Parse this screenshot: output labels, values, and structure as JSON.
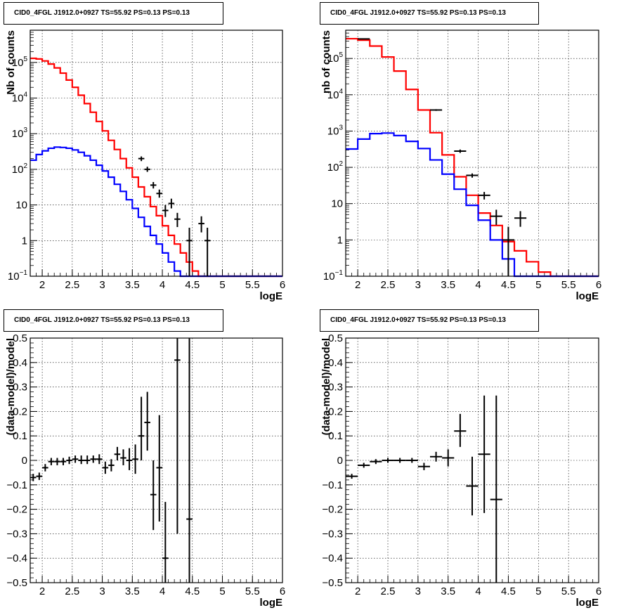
{
  "panels": [
    {
      "title": "CID0_4FGL J1912.0+0927 TS=55.92 PS=0.13 PS=0.13"
    },
    {
      "title": "CID0_4FGL J1912.0+0927 TS=55.92 PS=0.13 PS=0.13"
    },
    {
      "title": "CID0_4FGL J1912.0+0927 TS=55.92 PS=0.13 PS=0.13"
    },
    {
      "title": "CID0_4FGL J1912.0+0927 TS=55.92 PS=0.13 PS=0.13"
    }
  ],
  "chart_data": [
    {
      "type": "line",
      "title": "CID0_4FGL J1912.0+0927 TS=55.92 PS=0.13 PS=0.13",
      "xlabel": "logE",
      "ylabel": "Nb of counts",
      "xlim": [
        1.8,
        6.0
      ],
      "ylim": [
        0.1,
        800000
      ],
      "ylog": true,
      "grid": true,
      "xticks": [
        "2",
        "2.5",
        "3",
        "3.5",
        "4",
        "4.5",
        "5",
        "5.5",
        "6"
      ],
      "yticks": [
        {
          "v": 0.1,
          "label": "10^-1"
        },
        {
          "v": 1,
          "label": "1"
        },
        {
          "v": 10,
          "label": "10"
        },
        {
          "v": 100,
          "label": "10^2"
        },
        {
          "v": 1000,
          "label": "10^3"
        },
        {
          "v": 10000,
          "label": "10^4"
        },
        {
          "v": 100000,
          "label": "10^5"
        }
      ],
      "bin_edges": [
        1.8,
        1.9,
        2.0,
        2.1,
        2.2,
        2.3,
        2.4,
        2.5,
        2.6,
        2.7,
        2.8,
        2.9,
        3.0,
        3.1,
        3.2,
        3.3,
        3.4,
        3.5,
        3.6,
        3.7,
        3.8,
        3.9,
        4.0,
        4.1,
        4.2,
        4.3,
        4.4,
        4.5,
        4.6,
        4.7,
        4.8,
        4.9,
        5.0,
        5.1,
        5.2,
        5.3,
        5.4,
        5.5,
        5.6,
        5.7,
        5.8,
        5.9,
        6.0
      ],
      "series": [
        {
          "color": "#ff0000",
          "values": [
            130000,
            125000,
            110000,
            90000,
            70000,
            50000,
            32000,
            20000,
            12000,
            7000,
            4000,
            2200,
            1200,
            650,
            360,
            200,
            110,
            60,
            32,
            17,
            9,
            5,
            2.6,
            1.4,
            0.8,
            0.45,
            0.25,
            0.14,
            0.1,
            0.1,
            0.1,
            0.1,
            0.1,
            0.1,
            0.1,
            0.1,
            0.1,
            0.1,
            0.1,
            0.1,
            0.1,
            0.1
          ]
        },
        {
          "color": "#0000ff",
          "values": [
            180,
            260,
            330,
            390,
            420,
            410,
            390,
            350,
            300,
            240,
            180,
            130,
            90,
            60,
            38,
            24,
            14,
            8,
            4.5,
            2.5,
            1.4,
            0.8,
            0.45,
            0.25,
            0.14,
            0.1,
            0.1,
            0.1,
            0.1,
            0.1,
            0.1,
            0.1,
            0.1,
            0.1,
            0.1,
            0.1,
            0.1,
            0.1,
            0.1,
            0.1,
            0.1,
            0.1
          ]
        }
      ],
      "points": [
        {
          "x": 3.65,
          "y": 200,
          "xerr": 0.05,
          "ylo": 170,
          "yhi": 230
        },
        {
          "x": 3.75,
          "y": 100,
          "xerr": 0.05,
          "ylo": 85,
          "yhi": 118
        },
        {
          "x": 3.85,
          "y": 36,
          "xerr": 0.05,
          "ylo": 29,
          "yhi": 44
        },
        {
          "x": 3.95,
          "y": 21,
          "xerr": 0.05,
          "ylo": 16,
          "yhi": 27
        },
        {
          "x": 4.05,
          "y": 7,
          "xerr": 0.05,
          "ylo": 4.6,
          "yhi": 10
        },
        {
          "x": 4.15,
          "y": 11,
          "xerr": 0.05,
          "ylo": 8,
          "yhi": 15
        },
        {
          "x": 4.25,
          "y": 4,
          "xerr": 0.05,
          "ylo": 2.4,
          "yhi": 6
        },
        {
          "x": 4.45,
          "y": 1,
          "xerr": 0.05,
          "ylo": 0.1,
          "yhi": 2.3
        },
        {
          "x": 4.65,
          "y": 3,
          "xerr": 0.05,
          "ylo": 1.7,
          "yhi": 4.8
        },
        {
          "x": 4.75,
          "y": 1,
          "xerr": 0.05,
          "ylo": 0.1,
          "yhi": 2.3
        }
      ]
    },
    {
      "type": "line",
      "title": "CID0_4FGL J1912.0+0927 TS=55.92 PS=0.13 PS=0.13",
      "xlabel": "logE",
      "ylabel": "nb of counts",
      "xlim": [
        1.8,
        6.0
      ],
      "ylim": [
        0.1,
        600000
      ],
      "ylog": true,
      "grid": true,
      "xticks": [
        "2",
        "2.5",
        "3",
        "3.5",
        "4",
        "4.5",
        "5",
        "5.5",
        "6"
      ],
      "yticks": [
        {
          "v": 0.1,
          "label": "10^-1"
        },
        {
          "v": 1,
          "label": "1"
        },
        {
          "v": 10,
          "label": "10"
        },
        {
          "v": 100,
          "label": "10^2"
        },
        {
          "v": 1000,
          "label": "10^3"
        },
        {
          "v": 10000,
          "label": "10^4"
        },
        {
          "v": 100000,
          "label": "10^5"
        }
      ],
      "bin_edges": [
        1.8,
        2.0,
        2.2,
        2.4,
        2.6,
        2.8,
        3.0,
        3.2,
        3.4,
        3.6,
        3.8,
        4.0,
        4.2,
        4.4,
        4.6,
        4.8,
        5.0,
        5.2,
        5.4,
        5.6,
        5.8,
        6.0
      ],
      "series": [
        {
          "color": "#ff0000",
          "values": [
            350000,
            320000,
            220000,
            110000,
            45000,
            14000,
            3800,
            900,
            220,
            55,
            17,
            5.5,
            2.5,
            0.9,
            0.5,
            0.25,
            0.13,
            0.1,
            0.1,
            0.1,
            0.1
          ]
        },
        {
          "color": "#0000ff",
          "values": [
            320,
            600,
            850,
            880,
            750,
            520,
            330,
            160,
            65,
            25,
            9,
            3.5,
            1.0,
            0.3,
            0.1,
            0.1,
            0.1,
            0.1,
            0.1,
            0.1,
            0.1
          ]
        }
      ],
      "points": [
        {
          "x": 2.1,
          "y": 345000,
          "xerr": 0.1,
          "ylo": 340000,
          "yhi": 350000
        },
        {
          "x": 3.3,
          "y": 3800,
          "xerr": 0.1,
          "ylo": 3600,
          "yhi": 4000
        },
        {
          "x": 3.7,
          "y": 280,
          "xerr": 0.1,
          "ylo": 250,
          "yhi": 310
        },
        {
          "x": 3.9,
          "y": 60,
          "xerr": 0.1,
          "ylo": 52,
          "yhi": 68
        },
        {
          "x": 4.1,
          "y": 17,
          "xerr": 0.1,
          "ylo": 13,
          "yhi": 21
        },
        {
          "x": 4.3,
          "y": 4.5,
          "xerr": 0.1,
          "ylo": 2.6,
          "yhi": 6.8
        },
        {
          "x": 4.5,
          "y": 1,
          "xerr": 0.1,
          "ylo": 0.1,
          "yhi": 2.3
        },
        {
          "x": 4.7,
          "y": 4,
          "xerr": 0.1,
          "ylo": 2.3,
          "yhi": 6.2
        }
      ]
    },
    {
      "type": "scatter",
      "title": "CID0_4FGL J1912.0+0927 TS=55.92 PS=0.13 PS=0.13",
      "xlabel": "logE",
      "ylabel": "(data-model)/model",
      "xlim": [
        1.8,
        6.0
      ],
      "ylim": [
        -0.5,
        0.5
      ],
      "ylog": false,
      "grid": true,
      "xticks": [
        "2",
        "2.5",
        "3",
        "3.5",
        "4",
        "4.5",
        "5",
        "5.5",
        "6"
      ],
      "yticks": [
        {
          "v": -0.5,
          "label": "−0.5"
        },
        {
          "v": -0.4,
          "label": "−0.4"
        },
        {
          "v": -0.3,
          "label": "−0.3"
        },
        {
          "v": -0.2,
          "label": "−0.2"
        },
        {
          "v": -0.1,
          "label": "−0.1"
        },
        {
          "v": 0,
          "label": "0"
        },
        {
          "v": 0.1,
          "label": "0.1"
        },
        {
          "v": 0.2,
          "label": "0.2"
        },
        {
          "v": 0.3,
          "label": "0.3"
        },
        {
          "v": 0.4,
          "label": "0.4"
        },
        {
          "v": 0.5,
          "label": "0.5"
        }
      ],
      "points": [
        {
          "x": 1.85,
          "y": -0.07,
          "xerr": 0.05,
          "ylo": -0.085,
          "yhi": -0.055
        },
        {
          "x": 1.95,
          "y": -0.065,
          "xerr": 0.05,
          "ylo": -0.08,
          "yhi": -0.05
        },
        {
          "x": 2.05,
          "y": -0.03,
          "xerr": 0.05,
          "ylo": -0.045,
          "yhi": -0.015
        },
        {
          "x": 2.15,
          "y": -0.005,
          "xerr": 0.05,
          "ylo": -0.02,
          "yhi": 0.01
        },
        {
          "x": 2.25,
          "y": -0.005,
          "xerr": 0.05,
          "ylo": -0.02,
          "yhi": 0.01
        },
        {
          "x": 2.35,
          "y": -0.005,
          "xerr": 0.05,
          "ylo": -0.02,
          "yhi": 0.01
        },
        {
          "x": 2.45,
          "y": 0.0,
          "xerr": 0.05,
          "ylo": -0.015,
          "yhi": 0.015
        },
        {
          "x": 2.55,
          "y": 0.005,
          "xerr": 0.05,
          "ylo": -0.01,
          "yhi": 0.02
        },
        {
          "x": 2.65,
          "y": 0.0,
          "xerr": 0.05,
          "ylo": -0.015,
          "yhi": 0.02
        },
        {
          "x": 2.75,
          "y": 0.0,
          "xerr": 0.05,
          "ylo": -0.015,
          "yhi": 0.02
        },
        {
          "x": 2.85,
          "y": 0.005,
          "xerr": 0.05,
          "ylo": -0.01,
          "yhi": 0.02
        },
        {
          "x": 2.95,
          "y": 0.005,
          "xerr": 0.05,
          "ylo": -0.015,
          "yhi": 0.025
        },
        {
          "x": 3.05,
          "y": -0.03,
          "xerr": 0.05,
          "ylo": -0.055,
          "yhi": -0.005
        },
        {
          "x": 3.15,
          "y": -0.02,
          "xerr": 0.05,
          "ylo": -0.045,
          "yhi": 0.005
        },
        {
          "x": 3.25,
          "y": 0.025,
          "xerr": 0.05,
          "ylo": 0.0,
          "yhi": 0.055
        },
        {
          "x": 3.35,
          "y": 0.01,
          "xerr": 0.05,
          "ylo": -0.02,
          "yhi": 0.045
        },
        {
          "x": 3.45,
          "y": 0.0,
          "xerr": 0.05,
          "ylo": -0.04,
          "yhi": 0.05
        },
        {
          "x": 3.55,
          "y": 0.005,
          "xerr": 0.05,
          "ylo": -0.055,
          "yhi": 0.065
        },
        {
          "x": 3.65,
          "y": 0.1,
          "xerr": 0.05,
          "ylo": 0.0,
          "yhi": 0.26
        },
        {
          "x": 3.75,
          "y": 0.155,
          "xerr": 0.05,
          "ylo": 0.04,
          "yhi": 0.28
        },
        {
          "x": 3.85,
          "y": -0.14,
          "xerr": 0.05,
          "ylo": -0.285,
          "yhi": 0.0
        },
        {
          "x": 3.95,
          "y": -0.03,
          "xerr": 0.05,
          "ylo": -0.25,
          "yhi": 0.185
        },
        {
          "x": 4.05,
          "y": -0.4,
          "xerr": 0.05,
          "ylo": -0.5,
          "yhi": -0.17
        },
        {
          "x": 4.25,
          "y": 0.41,
          "xerr": 0.05,
          "ylo": -0.3,
          "yhi": 0.5
        },
        {
          "x": 4.45,
          "y": -0.24,
          "xerr": 0.05,
          "ylo": -0.5,
          "yhi": 0.5
        }
      ]
    },
    {
      "type": "scatter",
      "title": "CID0_4FGL J1912.0+0927 TS=55.92 PS=0.13 PS=0.13",
      "xlabel": "logE",
      "ylabel": "(data-model)/model",
      "xlim": [
        1.8,
        6.0
      ],
      "ylim": [
        -0.5,
        0.5
      ],
      "ylog": false,
      "grid": true,
      "xticks": [
        "2",
        "2.5",
        "3",
        "3.5",
        "4",
        "4.5",
        "5",
        "5.5",
        "6"
      ],
      "yticks": [
        {
          "v": -0.5,
          "label": "−0.5"
        },
        {
          "v": -0.4,
          "label": "−0.4"
        },
        {
          "v": -0.3,
          "label": "−0.3"
        },
        {
          "v": -0.2,
          "label": "−0.2"
        },
        {
          "v": -0.1,
          "label": "−0.1"
        },
        {
          "v": 0,
          "label": "0"
        },
        {
          "v": 0.1,
          "label": "0.1"
        },
        {
          "v": 0.2,
          "label": "0.2"
        },
        {
          "v": 0.3,
          "label": "0.3"
        },
        {
          "v": 0.4,
          "label": "0.4"
        },
        {
          "v": 0.5,
          "label": "0.5"
        }
      ],
      "points": [
        {
          "x": 1.9,
          "y": -0.065,
          "xerr": 0.1,
          "ylo": -0.075,
          "yhi": -0.055
        },
        {
          "x": 2.1,
          "y": -0.02,
          "xerr": 0.1,
          "ylo": -0.03,
          "yhi": -0.01
        },
        {
          "x": 2.3,
          "y": -0.005,
          "xerr": 0.1,
          "ylo": -0.015,
          "yhi": 0.005
        },
        {
          "x": 2.5,
          "y": 0.0,
          "xerr": 0.1,
          "ylo": -0.01,
          "yhi": 0.01
        },
        {
          "x": 2.7,
          "y": 0.0,
          "xerr": 0.1,
          "ylo": -0.01,
          "yhi": 0.01
        },
        {
          "x": 2.9,
          "y": 0.0,
          "xerr": 0.1,
          "ylo": -0.01,
          "yhi": 0.01
        },
        {
          "x": 3.1,
          "y": -0.025,
          "xerr": 0.1,
          "ylo": -0.04,
          "yhi": -0.01
        },
        {
          "x": 3.3,
          "y": 0.015,
          "xerr": 0.1,
          "ylo": -0.005,
          "yhi": 0.035
        },
        {
          "x": 3.5,
          "y": 0.01,
          "xerr": 0.1,
          "ylo": -0.025,
          "yhi": 0.045
        },
        {
          "x": 3.7,
          "y": 0.12,
          "xerr": 0.1,
          "ylo": 0.055,
          "yhi": 0.19
        },
        {
          "x": 3.9,
          "y": -0.105,
          "xerr": 0.1,
          "ylo": -0.225,
          "yhi": 0.015
        },
        {
          "x": 4.1,
          "y": 0.025,
          "xerr": 0.1,
          "ylo": -0.215,
          "yhi": 0.265
        },
        {
          "x": 4.3,
          "y": -0.16,
          "xerr": 0.1,
          "ylo": -0.5,
          "yhi": 0.265
        }
      ]
    }
  ]
}
